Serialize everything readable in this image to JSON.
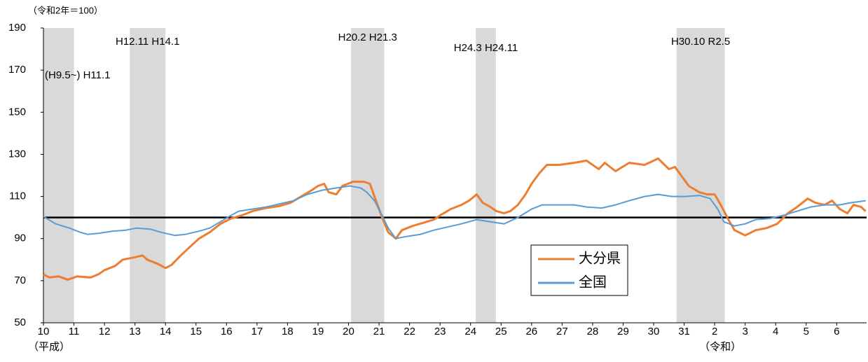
{
  "chart_data": {
    "type": "line",
    "unit_label": "（令和2年＝100）",
    "era_labels": [
      {
        "x": 1998,
        "label": "（平成）"
      },
      {
        "x": 2020,
        "label": "（令和）"
      }
    ],
    "xlim": [
      1998,
      2024.98
    ],
    "xticks": [
      {
        "value": 1998,
        "label": "10"
      },
      {
        "value": 1999,
        "label": "11"
      },
      {
        "value": 2000,
        "label": "12"
      },
      {
        "value": 2001,
        "label": "13"
      },
      {
        "value": 2002,
        "label": "14"
      },
      {
        "value": 2003,
        "label": "15"
      },
      {
        "value": 2004,
        "label": "16"
      },
      {
        "value": 2005,
        "label": "17"
      },
      {
        "value": 2006,
        "label": "18"
      },
      {
        "value": 2007,
        "label": "19"
      },
      {
        "value": 2008,
        "label": "20"
      },
      {
        "value": 2009,
        "label": "21"
      },
      {
        "value": 2010,
        "label": "22"
      },
      {
        "value": 2011,
        "label": "23"
      },
      {
        "value": 2012,
        "label": "24"
      },
      {
        "value": 2013,
        "label": "25"
      },
      {
        "value": 2014,
        "label": "26"
      },
      {
        "value": 2015,
        "label": "27"
      },
      {
        "value": 2016,
        "label": "28"
      },
      {
        "value": 2017,
        "label": "29"
      },
      {
        "value": 2018,
        "label": "30"
      },
      {
        "value": 2019,
        "label": "31"
      },
      {
        "value": 2020,
        "label": "2"
      },
      {
        "value": 2021,
        "label": "3"
      },
      {
        "value": 2022,
        "label": "4"
      },
      {
        "value": 2023,
        "label": "5"
      },
      {
        "value": 2024,
        "label": "6"
      }
    ],
    "ylim": [
      50,
      190
    ],
    "yticks": [
      50,
      70,
      90,
      110,
      130,
      150,
      170,
      190
    ],
    "reference_line": 100,
    "regions": [
      {
        "start": 1998,
        "end": 1999.0,
        "label": "(H9.5~) H11.1"
      },
      {
        "start": 2000.83,
        "end": 2002.0,
        "label": "H12.11  H14.1"
      },
      {
        "start": 2008.08,
        "end": 2009.17,
        "label": "H20.2  H21.3"
      },
      {
        "start": 2012.17,
        "end": 2012.83,
        "label": "H24.3  H24.11"
      },
      {
        "start": 2018.75,
        "end": 2020.33,
        "label": "H30.10  R2.5"
      }
    ],
    "region_color": "#d9d9d9",
    "series": [
      {
        "name": "大分県",
        "color": "#ed7d31",
        "x": [
          1998,
          1998.2,
          1998.5,
          1998.8,
          1999.1,
          1999.55,
          1999.8,
          2000,
          2000.35,
          2000.6,
          2000.95,
          2001.25,
          2001.4,
          2001.75,
          2002,
          2002.2,
          2002.5,
          2002.8,
          2003.1,
          2003.45,
          2003.8,
          2004.15,
          2004.5,
          2004.85,
          2005.3,
          2005.75,
          2006.1,
          2006.45,
          2006.8,
          2007,
          2007.2,
          2007.35,
          2007.6,
          2007.8,
          2008.15,
          2008.5,
          2008.7,
          2008.85,
          2009.1,
          2009.3,
          2009.55,
          2009.75,
          2010.1,
          2010.45,
          2010.8,
          2011,
          2011.35,
          2011.7,
          2011.95,
          2012.2,
          2012.4,
          2012.65,
          2012.85,
          2013.1,
          2013.3,
          2013.55,
          2013.8,
          2014,
          2014.25,
          2014.5,
          2014.9,
          2015.4,
          2015.8,
          2016.2,
          2016.4,
          2016.75,
          2017.2,
          2017.7,
          2018.15,
          2018.5,
          2018.7,
          2018.95,
          2019.15,
          2019.5,
          2019.75,
          2020,
          2020.2,
          2020.45,
          2020.65,
          2021,
          2021.35,
          2021.7,
          2022.05,
          2022.4,
          2022.7,
          2023.05,
          2023.3,
          2023.6,
          2023.85,
          2024.1,
          2024.35,
          2024.55,
          2024.8,
          2024.95
        ],
        "values": [
          73,
          71.5,
          72,
          70.5,
          72,
          71.5,
          73,
          75,
          77,
          80,
          81,
          82,
          80,
          78,
          76,
          77.5,
          82,
          86,
          90,
          93,
          97,
          99.5,
          101,
          103,
          104.5,
          105.5,
          107,
          110,
          113,
          115,
          116,
          112,
          111,
          115,
          117,
          117,
          116,
          110,
          100,
          93,
          90,
          94,
          96,
          97.5,
          99,
          101,
          104,
          106,
          108,
          111,
          107,
          105,
          103,
          102,
          103,
          106,
          111,
          116,
          121,
          125,
          125,
          126,
          127,
          123,
          126,
          122,
          126,
          125,
          128,
          123,
          124,
          119,
          115,
          112,
          111,
          111,
          106,
          99,
          94,
          91.5,
          94,
          95,
          97,
          102,
          105,
          109,
          107,
          106,
          108,
          104,
          102,
          106,
          105,
          103
        ]
      },
      {
        "name": "全国",
        "color": "#5b9bd5",
        "x": [
          1998,
          1998.4,
          1998.85,
          1999.2,
          1999.45,
          1999.8,
          2000.25,
          2000.7,
          2001.05,
          2001.5,
          2001.85,
          2002.3,
          2002.65,
          2003.1,
          2003.45,
          2003.8,
          2004.15,
          2004.4,
          2004.85,
          2005.3,
          2005.75,
          2006.2,
          2006.65,
          2007.15,
          2007.6,
          2008.05,
          2008.4,
          2008.6,
          2008.85,
          2009.1,
          2009.3,
          2009.55,
          2009.9,
          2010.35,
          2010.8,
          2011.25,
          2011.7,
          2012.2,
          2012.65,
          2013.1,
          2013.55,
          2014,
          2014.35,
          2014.9,
          2015.4,
          2015.8,
          2016.3,
          2016.75,
          2017.2,
          2017.7,
          2018.15,
          2018.6,
          2019.05,
          2019.5,
          2019.85,
          2020.1,
          2020.3,
          2020.65,
          2021,
          2021.35,
          2021.8,
          2022.25,
          2022.7,
          2023.15,
          2023.6,
          2024.1,
          2024.45,
          2024.95
        ],
        "values": [
          100.5,
          97,
          95,
          93,
          92,
          92.5,
          93.5,
          94,
          95,
          94.5,
          93,
          91.5,
          92,
          93.5,
          95,
          98,
          101,
          103,
          104,
          105,
          106.5,
          108,
          111,
          113,
          114,
          115,
          114,
          112,
          108,
          101,
          95,
          90,
          91,
          92,
          94,
          95.5,
          97,
          99,
          98,
          97,
          100,
          104,
          106,
          106,
          106,
          105,
          104.5,
          106,
          108,
          110,
          111,
          110,
          110,
          110.5,
          109,
          104,
          98,
          96,
          97,
          99,
          99.5,
          101,
          103,
          105,
          106,
          106,
          107,
          108
        ]
      }
    ]
  }
}
